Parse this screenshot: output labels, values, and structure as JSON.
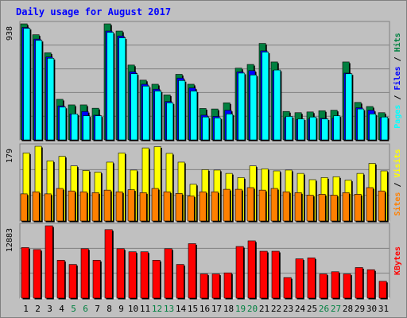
{
  "title": "Daily usage for August 2017",
  "colors": {
    "pages": "#008040",
    "files": "#0000ff",
    "hits": "#00ffff",
    "visits": "#ffff00",
    "sites": "#ff8000",
    "kbytes": "#ff0000",
    "weekend": "#008040",
    "weekday": "#000000",
    "panel_bg": "#c0c0c0",
    "frame_bg": "#c0c0c0"
  },
  "chart_data": [
    {
      "type": "bar",
      "panel": "hits-files-pages",
      "ylabel": "Pages / Files / Hits",
      "max_label": "938",
      "ylim": [
        0,
        938
      ],
      "categories": [
        "1",
        "2",
        "3",
        "4",
        "5",
        "6",
        "7",
        "8",
        "9",
        "10",
        "11",
        "12",
        "13",
        "14",
        "15",
        "16",
        "17",
        "18",
        "19",
        "20",
        "21",
        "22",
        "23",
        "24",
        "25",
        "26",
        "27",
        "28",
        "29",
        "30",
        "31"
      ],
      "series": [
        {
          "name": "Pages",
          "values": [
            938,
            850,
            704,
            328,
            283,
            283,
            256,
            938,
            880,
            605,
            483,
            450,
            364,
            530,
            450,
            254,
            250,
            300,
            580,
            610,
            780,
            630,
            230,
            220,
            226,
            236,
            240,
            630,
            303,
            270,
            220
          ]
        },
        {
          "name": "Files",
          "values": [
            909,
            815,
            670,
            275,
            210,
            230,
            200,
            880,
            840,
            550,
            450,
            410,
            310,
            500,
            420,
            200,
            190,
            240,
            550,
            560,
            720,
            560,
            180,
            165,
            170,
            175,
            175,
            540,
            260,
            240,
            180
          ]
        },
        {
          "name": "Hits",
          "values": [
            902,
            805,
            660,
            265,
            210,
            195,
            195,
            870,
            825,
            535,
            435,
            395,
            300,
            480,
            395,
            185,
            178,
            210,
            540,
            525,
            710,
            565,
            190,
            170,
            185,
            170,
            195,
            535,
            250,
            210,
            185
          ]
        }
      ]
    },
    {
      "type": "bar",
      "panel": "visits-sites",
      "ylabel": "Sites / Visits",
      "max_label": "179",
      "ylim": [
        0,
        179
      ],
      "categories": [
        "1",
        "2",
        "3",
        "4",
        "5",
        "6",
        "7",
        "8",
        "9",
        "10",
        "11",
        "12",
        "13",
        "14",
        "15",
        "16",
        "17",
        "18",
        "19",
        "20",
        "21",
        "22",
        "23",
        "24",
        "25",
        "26",
        "27",
        "28",
        "29",
        "30",
        "31"
      ],
      "series": [
        {
          "name": "Visits",
          "values": [
            163,
            179,
            144,
            155,
            132,
            121,
            117,
            141,
            163,
            122,
            175,
            178,
            162,
            141,
            88,
            123,
            122,
            114,
            104,
            132,
            125,
            120,
            122,
            114,
            99,
            104,
            106,
            98,
            114,
            138,
            120
          ]
        },
        {
          "name": "Sites",
          "values": [
            65,
            70,
            65,
            78,
            72,
            70,
            68,
            74,
            70,
            75,
            68,
            78,
            70,
            66,
            60,
            70,
            70,
            76,
            76,
            80,
            74,
            78,
            70,
            68,
            62,
            64,
            62,
            68,
            64,
            80,
            72
          ]
        }
      ]
    },
    {
      "type": "bar",
      "panel": "kbytes",
      "ylabel": "KBytes",
      "max_label": "12883",
      "ylim": [
        0,
        12883
      ],
      "categories": [
        "1",
        "2",
        "3",
        "4",
        "5",
        "6",
        "7",
        "8",
        "9",
        "10",
        "11",
        "12",
        "13",
        "14",
        "15",
        "16",
        "17",
        "18",
        "19",
        "20",
        "21",
        "22",
        "23",
        "24",
        "25",
        "26",
        "27",
        "28",
        "29",
        "30",
        "31"
      ],
      "series": [
        {
          "name": "KBytes",
          "values": [
            9000,
            8650,
            12883,
            6740,
            6000,
            8800,
            6740,
            12200,
            8800,
            8250,
            8250,
            6750,
            8800,
            6000,
            9700,
            4300,
            4300,
            4500,
            9200,
            10200,
            8350,
            8350,
            3660,
            7000,
            7170,
            4300,
            4700,
            4300,
            5450,
            5060,
            3000
          ]
        }
      ]
    }
  ],
  "x_labels": [
    "1",
    "2",
    "3",
    "4",
    "5",
    "6",
    "7",
    "8",
    "9",
    "10",
    "11",
    "12",
    "13",
    "14",
    "15",
    "16",
    "17",
    "18",
    "19",
    "20",
    "21",
    "22",
    "23",
    "24",
    "25",
    "26",
    "27",
    "28",
    "29",
    "30",
    "31"
  ],
  "weekend_days": [
    5,
    6,
    12,
    13,
    19,
    20,
    26,
    27
  ]
}
